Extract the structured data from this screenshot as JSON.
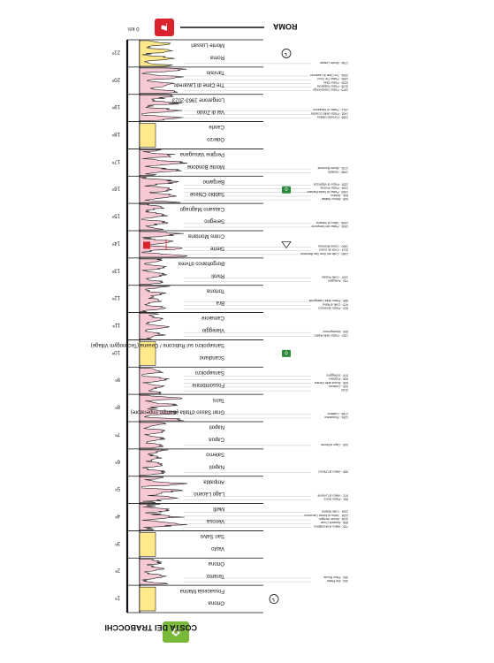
{
  "start_label": "COSTA DEI TRABOCCHI",
  "end_label": "ROMA",
  "scale_label": "0 km",
  "colors": {
    "profile_fill": "#f7c9d4",
    "profile_stroke": "#222222",
    "flat_fill": "#ffe98a",
    "start_badge": "#7ab83a",
    "end_badge": "#d9222c",
    "time_trial_badge": "#2c8a3c",
    "rest_day": "#ffffff"
  },
  "stages": [
    {
      "num": "1ª",
      "start": "Ortona",
      "finish": "Fossacesia Marina",
      "type": "flat",
      "climbs": [],
      "icons": [
        "start-flag-icon",
        "clock-icon"
      ]
    },
    {
      "num": "2ª",
      "start": "Teramo",
      "finish": "Ortona",
      "type": "hills",
      "climbs": [
        "303 - Ete Pietrin",
        "390 - Pizzo Ruiola"
      ],
      "icons": []
    },
    {
      "num": "3ª",
      "start": "Vasto",
      "finish": "San Salvo",
      "type": "flat",
      "climbs": [],
      "icons": []
    },
    {
      "num": "4ª",
      "start": "Venosa",
      "finish": "Melfi",
      "type": "mountain",
      "climbs": [
        "705 - Valico di Montalbino",
        "808 - Notarchi Croce",
        "1136 - Monte Varrigno",
        "1136 - Valico di Monte Carruozzo",
        "1184 - Colle Molella"
      ],
      "icons": []
    },
    {
      "num": "5ª",
      "start": "Lago Laceno",
      "finish": "Atripalda",
      "type": "mountain",
      "climbs": [
        "951 - Passo Serra",
        "972 - Valico di Lordomi"
      ],
      "icons": []
    },
    {
      "num": "6ª",
      "start": "Napoli",
      "finish": "Salerno",
      "type": "hills",
      "climbs": [
        "565 - Valico di Chiunzi"
      ],
      "icons": []
    },
    {
      "num": "7ª",
      "start": "Capua",
      "finish": "Napoli",
      "type": "hills",
      "climbs": [
        "445 - Capo di Monte"
      ],
      "icons": []
    },
    {
      "num": "8ª",
      "start": "Gran Sasso d'Italia (Campo Imperatore)",
      "finish": "Terni",
      "type": "mountain",
      "climbs": [
        "1254 - Roccaraso",
        "1768 - Calascio"
      ],
      "icons": []
    },
    {
      "num": "9ª",
      "start": "Fossombrone",
      "finish": "Sansepolcro",
      "type": "hills",
      "climbs": [
        "2130",
        "325 - Ciciaccio",
        "635 - Bocca delle Derane",
        "628 - Pugnano",
        "578 - Scheggino"
      ],
      "icons": []
    },
    {
      "num": "10ª",
      "start": "Scandiano",
      "finish": "Sansepolcro sul Rubicone / Cesena (Technogym Village)",
      "type": "time-trial",
      "climbs": [],
      "icons": [
        "time-trial-icon"
      ]
    },
    {
      "num": "11ª",
      "start": "Viareggio",
      "finish": "Camaiore",
      "type": "hills",
      "climbs": [
        "1327 - Passo delle Radici",
        "805 - Monteperano"
      ],
      "icons": []
    },
    {
      "num": "12ª",
      "start": "Bra",
      "finish": "Tortona",
      "type": "hills",
      "climbs": [
        "619 - Passo del Bocco",
        "475 - Colle di Nava",
        "585 - Passo della Castagnola"
      ],
      "icons": []
    },
    {
      "num": "13ª",
      "start": "Rivoli",
      "finish": "Borgofranco d'Ivrea",
      "type": "hills",
      "climbs": [
        "752 - Ardegami",
        "1007 - Colle Rosala"
      ],
      "icons": []
    },
    {
      "num": "14ª",
      "start": "Sierre",
      "finish": "Crans Montana",
      "type": "mountain",
      "climbs": [
        "1469 - Colle del Gran San Bernardo",
        "2113 - Croix de Coeur",
        "1900 - Crans Montana"
      ],
      "icons": [
        "cima-coppi-icon"
      ]
    },
    {
      "num": "15ª",
      "start": "Seregno",
      "finish": "Cassano Magnago",
      "type": "hills",
      "climbs": [
        "1904 - Passo del Sempione",
        "1008 - Valico di Valcava"
      ],
      "icons": []
    },
    {
      "num": "16ª",
      "start": "Sabbio Chiese",
      "finish": "Bergamo",
      "type": "mountain",
      "climbs": [
        "945 - Mezzo Sabbia",
        "846 - Selvino",
        "1069 - Passo di Santa Barbara",
        "1204 - Passo Portole",
        "1155 - Passo di Vaghezza"
      ],
      "icons": [
        "time-trial-icon"
      ]
    },
    {
      "num": "17ª",
      "start": "Monte Bondone",
      "finish": "Pergine Valsugana",
      "type": "mountain",
      "climbs": [
        "1058 - Santella",
        "1729 - Monte Bondone"
      ],
      "icons": []
    },
    {
      "num": "18ª",
      "start": "Oderzo",
      "finish": "Caorle",
      "type": "flat",
      "climbs": [],
      "icons": []
    },
    {
      "num": "19ª",
      "start": "Val di Zoldo",
      "finish": "Longarone 1963-2023",
      "type": "mountain",
      "climbs": [
        "1055 - Forcella Cibiana",
        "1431 - Passo della Crosetta",
        "1012 - Passo di Staulanza"
      ],
      "icons": []
    },
    {
      "num": "20ª",
      "start": "Tre Cime di Lavaredo",
      "finish": "Tarvisio",
      "type": "mountain",
      "climbs": [
        "1875 - Passo Campolongo",
        "2105 - Passo Valparola",
        "2233 - Passo Giau",
        "1995 - Passo Tre Croci",
        "2304 - Tre Cime di Lavaredo"
      ],
      "icons": []
    },
    {
      "num": "21ª",
      "start": "Roma",
      "finish": "Monte Lussari",
      "type": "time-trial-climb",
      "climbs": [
        "1766 - Monte Lussari"
      ],
      "icons": [
        "clock-icon",
        "finish-flag-icon"
      ]
    }
  ]
}
